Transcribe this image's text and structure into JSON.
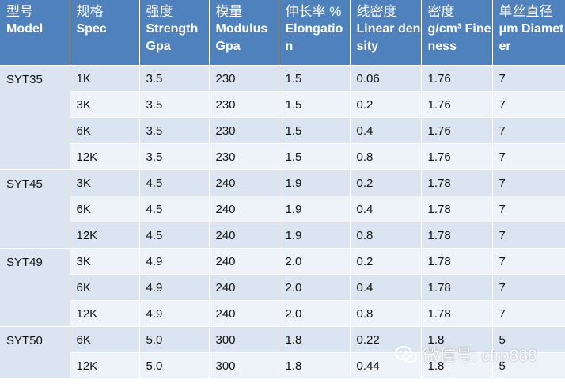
{
  "headers": [
    {
      "zh": "型号",
      "en": "Model"
    },
    {
      "zh": "规格",
      "en": "Spec"
    },
    {
      "zh": "强度",
      "en": "Strength Gpa"
    },
    {
      "zh": "模量",
      "en": "Modulus Gpa"
    },
    {
      "zh": "伸长率 %",
      "en": "Elongatio n"
    },
    {
      "zh": "线密度",
      "en": "Linear density"
    },
    {
      "zh": "密度",
      "en": "g/cm³ Fineness"
    },
    {
      "zh": "单丝直径",
      "en": "μm Diameter"
    }
  ],
  "groups": [
    {
      "model": "SYT35",
      "rows": [
        [
          "1K",
          "3.5",
          "230",
          "1.5",
          "0.06",
          "1.76",
          "7"
        ],
        [
          "3K",
          "3.5",
          "230",
          "1.5",
          "0.2",
          "1.76",
          "7"
        ],
        [
          "6K",
          "3.5",
          "230",
          "1.5",
          "0.4",
          "1.76",
          "7"
        ],
        [
          "12K",
          "3.5",
          "230",
          "1.5",
          "0.8",
          "1.76",
          "7"
        ]
      ]
    },
    {
      "model": "SYT45",
      "rows": [
        [
          "3K",
          "4.5",
          "240",
          "1.9",
          "0.2",
          "1.78",
          "7"
        ],
        [
          "6K",
          "4.5",
          "240",
          "1.9",
          "0.4",
          "1.78",
          "7"
        ],
        [
          "12K",
          "4.5",
          "240",
          "1.9",
          "0.8",
          "1.78",
          "7"
        ]
      ]
    },
    {
      "model": "SYT49",
      "rows": [
        [
          "3K",
          "4.9",
          "240",
          "2.0",
          "0.2",
          "1.78",
          "7"
        ],
        [
          "6K",
          "4.9",
          "240",
          "2.0",
          "0.4",
          "1.78",
          "7"
        ],
        [
          "12K",
          "4.9",
          "240",
          "2.0",
          "0.8",
          "1.78",
          "7"
        ]
      ]
    },
    {
      "model": "SYT50",
      "rows": [
        [
          "6K",
          "5.0",
          "300",
          "1.8",
          "0.22",
          "1.8",
          "5"
        ],
        [
          "12K",
          "5.0",
          "300",
          "1.8",
          "0.44",
          "1.8",
          "5"
        ]
      ]
    }
  ],
  "watermark": {
    "text": "微信号: cfrp888",
    "icon": "wechat-icon"
  },
  "colors": {
    "header": "#4f81bd",
    "row_odd": "#dbe5f1",
    "row_even": "#eef3f9"
  }
}
